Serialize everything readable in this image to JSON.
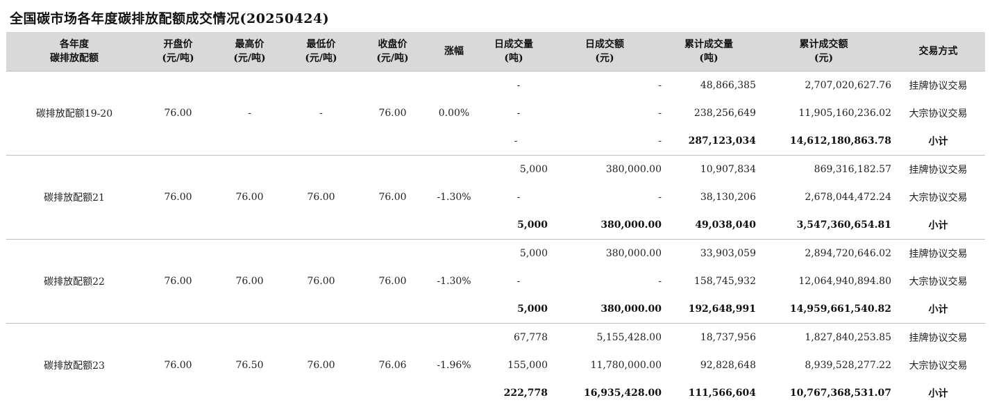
{
  "title": "全国碳市场各年度碳排放配额成交情况(20250424)",
  "headers": [
    {
      "l1": "各年度",
      "l2": "碳排放配额"
    },
    {
      "l1": "开盘价",
      "l2": "(元/吨)"
    },
    {
      "l1": "最高价",
      "l2": "(元/吨)"
    },
    {
      "l1": "最低价",
      "l2": "(元/吨)"
    },
    {
      "l1": "收盘价",
      "l2": "(元/吨)"
    },
    {
      "l1": "涨幅",
      "l2": ""
    },
    {
      "l1": "日成交量",
      "l2": "(吨)"
    },
    {
      "l1": "日成交额",
      "l2": "(元)"
    },
    {
      "l1": "累计成交量",
      "l2": "(吨)"
    },
    {
      "l1": "累计成交额",
      "l2": "(元)"
    },
    {
      "l1": "交易方式",
      "l2": ""
    }
  ],
  "groups": [
    {
      "name": "碳排放配额19-20",
      "open": "76.00",
      "high": "-",
      "low": "-",
      "close": "76.00",
      "change": "0.00%",
      "rows": [
        {
          "vol": "-",
          "amt": "-",
          "cum_vol": "48,866,385",
          "cum_amt": "2,707,020,627.76",
          "method": "挂牌协议交易"
        },
        {
          "vol": "-",
          "amt": "-",
          "cum_vol": "238,256,649",
          "cum_amt": "11,905,160,236.02",
          "method": "大宗协议交易"
        },
        {
          "vol": "-",
          "amt": "-",
          "cum_vol": "287,123,034",
          "cum_amt": "14,612,180,863.78",
          "method": "小计"
        }
      ]
    },
    {
      "name": "碳排放配额21",
      "open": "76.00",
      "high": "76.00",
      "low": "76.00",
      "close": "76.00",
      "change": "-1.30%",
      "rows": [
        {
          "vol": "5,000",
          "amt": "380,000.00",
          "cum_vol": "10,907,834",
          "cum_amt": "869,316,182.57",
          "method": "挂牌协议交易"
        },
        {
          "vol": "-",
          "amt": "-",
          "cum_vol": "38,130,206",
          "cum_amt": "2,678,044,472.24",
          "method": "大宗协议交易"
        },
        {
          "vol": "5,000",
          "amt": "380,000.00",
          "cum_vol": "49,038,040",
          "cum_amt": "3,547,360,654.81",
          "method": "小计"
        }
      ]
    },
    {
      "name": "碳排放配额22",
      "open": "76.00",
      "high": "76.00",
      "low": "76.00",
      "close": "76.00",
      "change": "-1.30%",
      "rows": [
        {
          "vol": "5,000",
          "amt": "380,000.00",
          "cum_vol": "33,903,059",
          "cum_amt": "2,894,720,646.02",
          "method": "挂牌协议交易"
        },
        {
          "vol": "-",
          "amt": "-",
          "cum_vol": "158,745,932",
          "cum_amt": "12,064,940,894.80",
          "method": "大宗协议交易"
        },
        {
          "vol": "5,000",
          "amt": "380,000.00",
          "cum_vol": "192,648,991",
          "cum_amt": "14,959,661,540.82",
          "method": "小计"
        }
      ]
    },
    {
      "name": "碳排放配额23",
      "open": "76.00",
      "high": "76.50",
      "low": "76.00",
      "close": "76.06",
      "change": "-1.96%",
      "rows": [
        {
          "vol": "67,778",
          "amt": "5,155,428.00",
          "cum_vol": "18,737,956",
          "cum_amt": "1,827,840,253.85",
          "method": "挂牌协议交易"
        },
        {
          "vol": "155,000",
          "amt": "11,780,000.00",
          "cum_vol": "92,828,648",
          "cum_amt": "8,939,528,277.22",
          "method": "大宗协议交易"
        },
        {
          "vol": "222,778",
          "amt": "16,935,428.00",
          "cum_vol": "111,566,604",
          "cum_amt": "10,767,368,531.07",
          "method": "小计"
        }
      ]
    }
  ]
}
